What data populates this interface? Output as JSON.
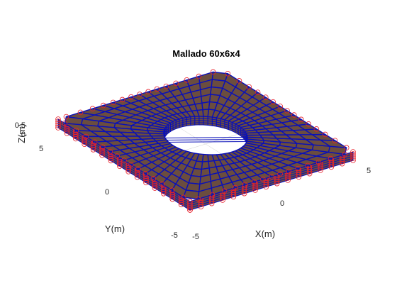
{
  "figure": {
    "title": "Mallado 60x6x4",
    "xlabel": "X(m)",
    "ylabel": "Y(m)",
    "zlabel": "Z(m)",
    "x_ticks": [
      "-5",
      "0",
      "5"
    ],
    "y_ticks": [
      "-5",
      "0",
      "5"
    ],
    "z_ticks": [
      "0",
      "0.5"
    ],
    "mesh": {
      "circumferential_divisions": 60,
      "radial_divisions": 6,
      "thickness_divisions": 4,
      "half_width": 5,
      "hole_radius": 2,
      "thickness": 0.5
    },
    "colors": {
      "face": "#6b4d3f",
      "edge": "#0a10b8",
      "node_marker": "#e8202a",
      "grid": "#d9d9d9"
    }
  }
}
